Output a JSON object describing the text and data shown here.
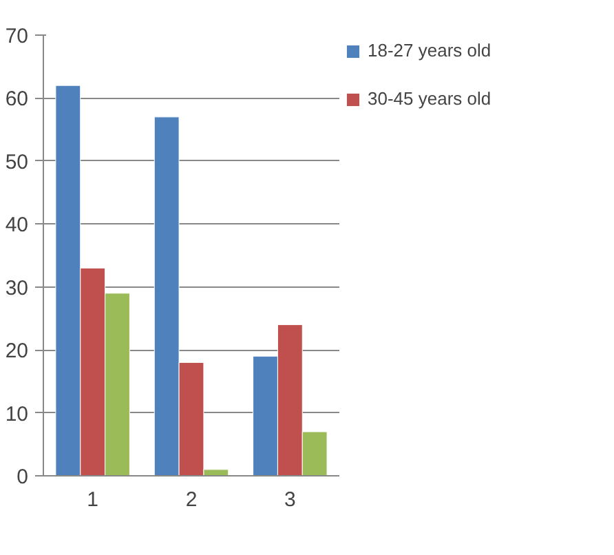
{
  "chart_data": {
    "type": "bar",
    "categories": [
      "1",
      "2",
      "3"
    ],
    "series": [
      {
        "name": "18-27 years old",
        "color": "#4f81bd",
        "values": [
          62,
          57,
          19
        ]
      },
      {
        "name": "30-45 years old",
        "color": "#c0504d",
        "values": [
          33,
          18,
          24
        ]
      },
      {
        "color": "#9bbb59",
        "values": [
          29,
          1,
          7
        ]
      }
    ],
    "ylim": [
      0,
      70
    ],
    "yticks": [
      0,
      10,
      20,
      30,
      40,
      50,
      60,
      70
    ],
    "grid": "y",
    "legend": "right"
  }
}
